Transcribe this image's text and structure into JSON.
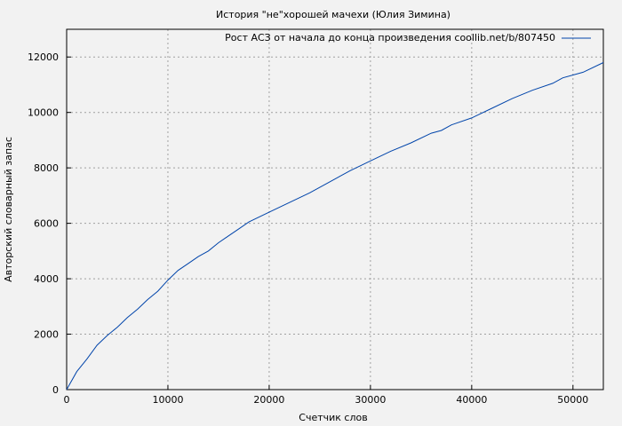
{
  "chart_data": {
    "type": "line",
    "title": "История \"не\"хорошей мачехи (Юлия Зимина)",
    "xlabel": "Счетчик слов",
    "ylabel": "Авторский словарный запас",
    "xlim": [
      0,
      53000
    ],
    "ylim": [
      0,
      13000
    ],
    "xticks": [
      0,
      10000,
      20000,
      30000,
      40000,
      50000
    ],
    "yticks": [
      0,
      2000,
      4000,
      6000,
      8000,
      10000,
      12000
    ],
    "grid": true,
    "legend_position": "top-right",
    "series": [
      {
        "name": "Рост АСЗ от начала до конца произведения coollib.net/b/807450",
        "color": "#0044aa",
        "x": [
          0,
          1000,
          2000,
          3000,
          4000,
          5000,
          6000,
          7000,
          8000,
          9000,
          10000,
          11000,
          12000,
          13000,
          14000,
          15000,
          16000,
          17000,
          18000,
          20000,
          22000,
          24000,
          26000,
          28000,
          30000,
          32000,
          34000,
          36000,
          37000,
          38000,
          40000,
          42000,
          44000,
          46000,
          48000,
          49000,
          51000,
          53000
        ],
        "y": [
          0,
          650,
          1100,
          1600,
          1950,
          2250,
          2600,
          2900,
          3250,
          3550,
          3950,
          4300,
          4550,
          4800,
          5000,
          5300,
          5550,
          5800,
          6050,
          6400,
          6750,
          7100,
          7500,
          7900,
          8250,
          8600,
          8900,
          9250,
          9350,
          9550,
          9800,
          10150,
          10500,
          10800,
          11050,
          11250,
          11450,
          11800
        ]
      }
    ]
  }
}
